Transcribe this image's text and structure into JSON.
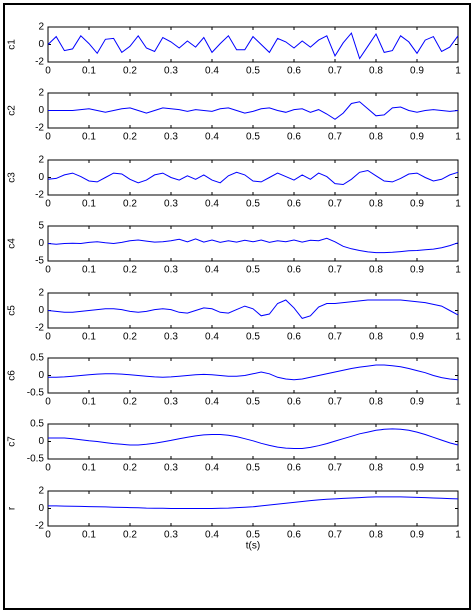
{
  "chart_data": [
    {
      "type": "line",
      "ylabel": "c1",
      "xlim": [
        0,
        1
      ],
      "ylim": [
        -2,
        2
      ],
      "xticks": [
        0,
        0.1,
        0.2,
        0.3,
        0.4,
        0.5,
        0.6,
        0.7,
        0.8,
        0.9,
        1
      ],
      "yticks": [
        -2,
        0,
        2
      ],
      "color": "#0000ff",
      "x": [
        0,
        0.02,
        0.04,
        0.06,
        0.08,
        0.1,
        0.12,
        0.14,
        0.16,
        0.18,
        0.2,
        0.22,
        0.24,
        0.26,
        0.28,
        0.3,
        0.32,
        0.34,
        0.36,
        0.38,
        0.4,
        0.42,
        0.44,
        0.46,
        0.48,
        0.5,
        0.52,
        0.54,
        0.56,
        0.58,
        0.6,
        0.62,
        0.64,
        0.66,
        0.68,
        0.7,
        0.72,
        0.74,
        0.76,
        0.78,
        0.8,
        0.82,
        0.84,
        0.86,
        0.88,
        0.9,
        0.92,
        0.94,
        0.96,
        0.98,
        1
      ],
      "values": [
        0,
        0.9,
        -0.7,
        -0.5,
        1.0,
        0.1,
        -1.0,
        0.6,
        0.7,
        -0.9,
        -0.2,
        1.0,
        -0.4,
        -0.8,
        0.8,
        0.3,
        -0.4,
        0.4,
        -0.3,
        0.8,
        -0.9,
        0.1,
        1.0,
        -0.6,
        -0.6,
        0.9,
        0,
        -0.9,
        0.7,
        0.3,
        -0.4,
        0.4,
        -0.3,
        0.5,
        1.0,
        -1.3,
        0.2,
        1.3,
        -1.6,
        -0.2,
        1.2,
        -0.9,
        -0.7,
        1.0,
        0.3,
        -1.0,
        0.5,
        0.9,
        -0.8,
        -0.3,
        1.0
      ]
    },
    {
      "type": "line",
      "ylabel": "c2",
      "xlim": [
        0,
        1
      ],
      "ylim": [
        -2,
        2
      ],
      "xticks": [
        0,
        0.1,
        0.2,
        0.3,
        0.4,
        0.5,
        0.6,
        0.7,
        0.8,
        0.9,
        1
      ],
      "yticks": [
        -2,
        0,
        2
      ],
      "color": "#0000ff",
      "x": [
        0,
        0.02,
        0.04,
        0.06,
        0.08,
        0.1,
        0.12,
        0.14,
        0.16,
        0.18,
        0.2,
        0.22,
        0.24,
        0.26,
        0.28,
        0.3,
        0.32,
        0.34,
        0.36,
        0.38,
        0.4,
        0.42,
        0.44,
        0.46,
        0.48,
        0.5,
        0.52,
        0.54,
        0.56,
        0.58,
        0.6,
        0.62,
        0.64,
        0.66,
        0.68,
        0.7,
        0.72,
        0.74,
        0.76,
        0.78,
        0.8,
        0.82,
        0.84,
        0.86,
        0.88,
        0.9,
        0.92,
        0.94,
        0.96,
        0.98,
        1
      ],
      "values": [
        0,
        0,
        0,
        0,
        0.1,
        0.2,
        0,
        -0.2,
        0,
        0.2,
        0.3,
        0,
        -0.3,
        0,
        0.3,
        0.2,
        0.1,
        -0.1,
        0.1,
        0,
        -0.1,
        0.2,
        0.3,
        0,
        -0.3,
        -0.1,
        0.2,
        0.3,
        0,
        -0.2,
        0.1,
        0.2,
        -0.2,
        0.1,
        -0.4,
        -1.0,
        -0.3,
        0.8,
        1.0,
        0.2,
        -0.6,
        -0.5,
        0.3,
        0.4,
        0,
        -0.2,
        0,
        0.1,
        0,
        -0.1,
        0
      ]
    },
    {
      "type": "line",
      "ylabel": "c3",
      "xlim": [
        0,
        1
      ],
      "ylim": [
        -2,
        2
      ],
      "xticks": [
        0,
        0.1,
        0.2,
        0.3,
        0.4,
        0.5,
        0.6,
        0.7,
        0.8,
        0.9,
        1
      ],
      "yticks": [
        -2,
        0,
        2
      ],
      "color": "#0000ff",
      "x": [
        0,
        0.02,
        0.04,
        0.06,
        0.08,
        0.1,
        0.12,
        0.14,
        0.16,
        0.18,
        0.2,
        0.22,
        0.24,
        0.26,
        0.28,
        0.3,
        0.32,
        0.34,
        0.36,
        0.38,
        0.4,
        0.42,
        0.44,
        0.46,
        0.48,
        0.5,
        0.52,
        0.54,
        0.56,
        0.58,
        0.6,
        0.62,
        0.64,
        0.66,
        0.68,
        0.7,
        0.72,
        0.74,
        0.76,
        0.78,
        0.8,
        0.82,
        0.84,
        0.86,
        0.88,
        0.9,
        0.92,
        0.94,
        0.96,
        0.98,
        1
      ],
      "values": [
        -0.2,
        -0.1,
        0.3,
        0.5,
        0.1,
        -0.4,
        -0.5,
        0,
        0.5,
        0.4,
        -0.2,
        -0.6,
        -0.3,
        0.3,
        0.5,
        0,
        -0.3,
        0.2,
        -0.2,
        0.3,
        -0.3,
        -0.6,
        0.2,
        0.6,
        0.3,
        -0.4,
        -0.5,
        0,
        0.5,
        0.1,
        -0.3,
        0.3,
        -0.2,
        0.5,
        0.1,
        -0.7,
        -0.8,
        -0.2,
        0.6,
        0.8,
        0.2,
        -0.4,
        -0.5,
        -0.1,
        0.4,
        0.5,
        0,
        -0.4,
        -0.2,
        0.3,
        0.6
      ]
    },
    {
      "type": "line",
      "ylabel": "c4",
      "xlim": [
        0,
        1
      ],
      "ylim": [
        -5,
        5
      ],
      "xticks": [
        0,
        0.1,
        0.2,
        0.3,
        0.4,
        0.5,
        0.6,
        0.7,
        0.8,
        0.9,
        1
      ],
      "yticks": [
        -5,
        0,
        5
      ],
      "color": "#0000ff",
      "x": [
        0,
        0.02,
        0.04,
        0.06,
        0.08,
        0.1,
        0.12,
        0.14,
        0.16,
        0.18,
        0.2,
        0.22,
        0.24,
        0.26,
        0.28,
        0.3,
        0.32,
        0.34,
        0.36,
        0.38,
        0.4,
        0.42,
        0.44,
        0.46,
        0.48,
        0.5,
        0.52,
        0.54,
        0.56,
        0.58,
        0.6,
        0.62,
        0.64,
        0.66,
        0.68,
        0.7,
        0.72,
        0.74,
        0.76,
        0.78,
        0.8,
        0.82,
        0.84,
        0.86,
        0.88,
        0.9,
        0.92,
        0.94,
        0.96,
        0.98,
        1
      ],
      "values": [
        0,
        -0.2,
        0,
        0.1,
        0,
        0.3,
        0.5,
        0.2,
        0,
        0.3,
        0.8,
        1.0,
        0.7,
        0.4,
        0.5,
        0.8,
        1.2,
        0.5,
        1.3,
        0.4,
        1.0,
        0.3,
        0.8,
        0.4,
        0.9,
        0.5,
        1.0,
        0.3,
        0.8,
        0.5,
        1.0,
        0.4,
        0.9,
        0.8,
        1.5,
        0.5,
        -0.8,
        -1.5,
        -2.0,
        -2.4,
        -2.6,
        -2.6,
        -2.5,
        -2.3,
        -2.1,
        -2.0,
        -1.8,
        -1.6,
        -1.2,
        -0.6,
        0.2
      ]
    },
    {
      "type": "line",
      "ylabel": "c5",
      "xlim": [
        0,
        1
      ],
      "ylim": [
        -2,
        2
      ],
      "xticks": [
        0,
        0.1,
        0.2,
        0.3,
        0.4,
        0.5,
        0.6,
        0.7,
        0.8,
        0.9,
        1
      ],
      "yticks": [
        -2,
        0,
        2
      ],
      "color": "#0000ff",
      "x": [
        0,
        0.02,
        0.04,
        0.06,
        0.08,
        0.1,
        0.12,
        0.14,
        0.16,
        0.18,
        0.2,
        0.22,
        0.24,
        0.26,
        0.28,
        0.3,
        0.32,
        0.34,
        0.36,
        0.38,
        0.4,
        0.42,
        0.44,
        0.46,
        0.48,
        0.5,
        0.52,
        0.54,
        0.56,
        0.58,
        0.6,
        0.62,
        0.64,
        0.66,
        0.68,
        0.7,
        0.72,
        0.74,
        0.76,
        0.78,
        0.8,
        0.82,
        0.84,
        0.86,
        0.88,
        0.9,
        0.92,
        0.94,
        0.96,
        0.98,
        1
      ],
      "values": [
        0,
        -0.1,
        -0.2,
        -0.2,
        -0.1,
        0,
        0.1,
        0.2,
        0.2,
        0.1,
        -0.1,
        -0.2,
        -0.1,
        0.1,
        0.2,
        0.1,
        -0.2,
        -0.3,
        0,
        0.3,
        0.2,
        -0.2,
        -0.3,
        0.1,
        0.5,
        0.2,
        -0.6,
        -0.4,
        0.8,
        1.2,
        0.3,
        -0.9,
        -0.6,
        0.4,
        0.8,
        0.8,
        0.9,
        1.0,
        1.1,
        1.2,
        1.2,
        1.2,
        1.2,
        1.2,
        1.1,
        1.0,
        0.9,
        0.7,
        0.5,
        0,
        -0.5
      ]
    },
    {
      "type": "line",
      "ylabel": "c6",
      "xlim": [
        0,
        1
      ],
      "ylim": [
        -0.5,
        0.5
      ],
      "xticks": [
        0,
        0.1,
        0.2,
        0.3,
        0.4,
        0.5,
        0.6,
        0.7,
        0.8,
        0.9,
        1
      ],
      "yticks": [
        -0.5,
        0,
        0.5
      ],
      "color": "#0000ff",
      "x": [
        0,
        0.02,
        0.04,
        0.06,
        0.08,
        0.1,
        0.12,
        0.14,
        0.16,
        0.18,
        0.2,
        0.22,
        0.24,
        0.26,
        0.28,
        0.3,
        0.32,
        0.34,
        0.36,
        0.38,
        0.4,
        0.42,
        0.44,
        0.46,
        0.48,
        0.5,
        0.52,
        0.54,
        0.56,
        0.58,
        0.6,
        0.62,
        0.64,
        0.66,
        0.68,
        0.7,
        0.72,
        0.74,
        0.76,
        0.78,
        0.8,
        0.82,
        0.84,
        0.86,
        0.88,
        0.9,
        0.92,
        0.94,
        0.96,
        0.98,
        1
      ],
      "values": [
        -0.05,
        -0.05,
        -0.04,
        -0.02,
        0,
        0.02,
        0.04,
        0.05,
        0.05,
        0.04,
        0.02,
        0,
        -0.02,
        -0.04,
        -0.05,
        -0.04,
        -0.02,
        0,
        0.02,
        0.03,
        0.02,
        0,
        -0.02,
        -0.02,
        0,
        0.05,
        0.1,
        0.05,
        -0.05,
        -0.1,
        -0.12,
        -0.1,
        -0.05,
        0,
        0.05,
        0.1,
        0.15,
        0.2,
        0.24,
        0.27,
        0.3,
        0.3,
        0.28,
        0.25,
        0.2,
        0.14,
        0.08,
        0,
        -0.06,
        -0.1,
        -0.12
      ]
    },
    {
      "type": "line",
      "ylabel": "c7",
      "xlim": [
        0,
        1
      ],
      "ylim": [
        -0.5,
        0.5
      ],
      "xticks": [
        0,
        0.1,
        0.2,
        0.3,
        0.4,
        0.5,
        0.6,
        0.7,
        0.8,
        0.9,
        1
      ],
      "yticks": [
        -0.5,
        0,
        0.5
      ],
      "color": "#0000ff",
      "x": [
        0,
        0.02,
        0.04,
        0.06,
        0.08,
        0.1,
        0.12,
        0.14,
        0.16,
        0.18,
        0.2,
        0.22,
        0.24,
        0.26,
        0.28,
        0.3,
        0.32,
        0.34,
        0.36,
        0.38,
        0.4,
        0.42,
        0.44,
        0.46,
        0.48,
        0.5,
        0.52,
        0.54,
        0.56,
        0.58,
        0.6,
        0.62,
        0.64,
        0.66,
        0.68,
        0.7,
        0.72,
        0.74,
        0.76,
        0.78,
        0.8,
        0.82,
        0.84,
        0.86,
        0.88,
        0.9,
        0.92,
        0.94,
        0.96,
        0.98,
        1
      ],
      "values": [
        0.1,
        0.1,
        0.1,
        0.08,
        0.05,
        0.02,
        0,
        -0.03,
        -0.06,
        -0.08,
        -0.1,
        -0.1,
        -0.08,
        -0.05,
        -0.01,
        0.03,
        0.08,
        0.12,
        0.16,
        0.19,
        0.2,
        0.2,
        0.18,
        0.14,
        0.08,
        0.02,
        -0.05,
        -0.11,
        -0.16,
        -0.19,
        -0.2,
        -0.2,
        -0.17,
        -0.12,
        -0.06,
        0.01,
        0.08,
        0.15,
        0.22,
        0.27,
        0.32,
        0.35,
        0.36,
        0.35,
        0.32,
        0.27,
        0.2,
        0.12,
        0.04,
        -0.04,
        -0.1
      ]
    },
    {
      "type": "line",
      "ylabel": "r",
      "xlabel": "t(s)",
      "xlim": [
        0,
        1
      ],
      "ylim": [
        -2,
        2
      ],
      "xticks": [
        0,
        0.1,
        0.2,
        0.3,
        0.4,
        0.5,
        0.6,
        0.7,
        0.8,
        0.9,
        1
      ],
      "yticks": [
        -2,
        0,
        2
      ],
      "color": "#0000ff",
      "x": [
        0,
        0.02,
        0.04,
        0.06,
        0.08,
        0.1,
        0.12,
        0.14,
        0.16,
        0.18,
        0.2,
        0.22,
        0.24,
        0.26,
        0.28,
        0.3,
        0.32,
        0.34,
        0.36,
        0.38,
        0.4,
        0.42,
        0.44,
        0.46,
        0.48,
        0.5,
        0.52,
        0.54,
        0.56,
        0.58,
        0.6,
        0.62,
        0.64,
        0.66,
        0.68,
        0.7,
        0.72,
        0.74,
        0.76,
        0.78,
        0.8,
        0.82,
        0.84,
        0.86,
        0.88,
        0.9,
        0.92,
        0.94,
        0.96,
        0.98,
        1
      ],
      "values": [
        0.3,
        0.3,
        0.28,
        0.26,
        0.24,
        0.22,
        0.2,
        0.18,
        0.15,
        0.12,
        0.1,
        0.08,
        0.05,
        0.03,
        0.02,
        0,
        0,
        0,
        0,
        0,
        0,
        0.02,
        0.05,
        0.1,
        0.15,
        0.2,
        0.3,
        0.4,
        0.5,
        0.6,
        0.7,
        0.8,
        0.9,
        0.98,
        1.05,
        1.1,
        1.15,
        1.2,
        1.25,
        1.3,
        1.32,
        1.33,
        1.33,
        1.32,
        1.3,
        1.27,
        1.24,
        1.2,
        1.17,
        1.13,
        1.1
      ]
    }
  ]
}
